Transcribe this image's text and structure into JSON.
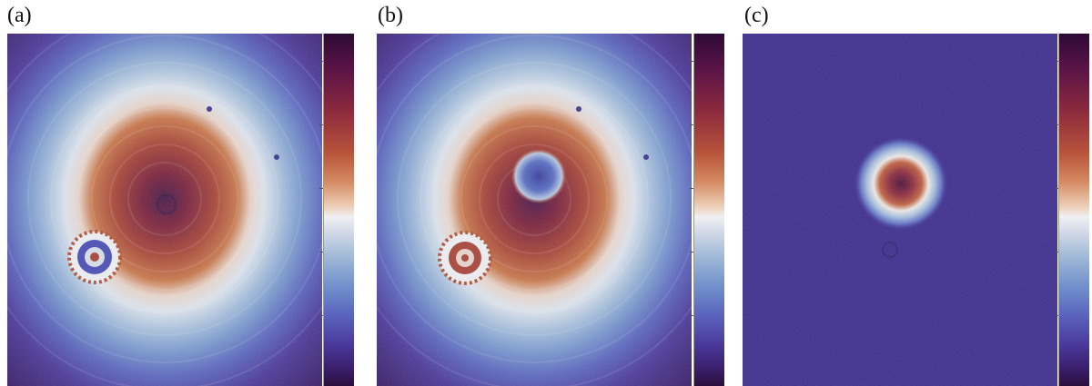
{
  "panels": [
    {
      "label": "(a)"
    },
    {
      "label": "(b)"
    },
    {
      "label": "(c)"
    }
  ],
  "colormap": {
    "high": "#2c0a35",
    "mid": "#f1f0f2",
    "low": "#2a0f3c",
    "orange": "#b8543a",
    "blue": "#6f8fcb"
  }
}
